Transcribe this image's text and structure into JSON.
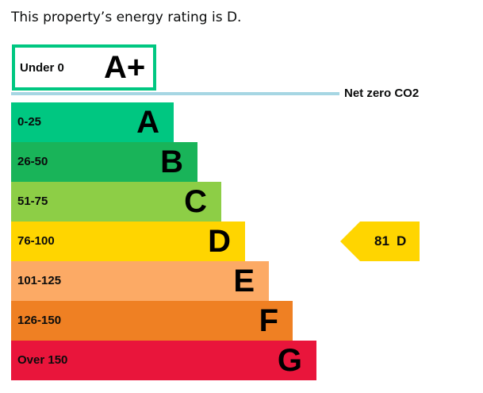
{
  "headline": "This property’s energy rating is D.",
  "aplus": {
    "range": "Under 0",
    "letter": "A+",
    "color": "#00c781"
  },
  "net_zero": {
    "label": "Net zero CO2",
    "color": "#a6d6e3"
  },
  "bands": [
    {
      "range": "0-25",
      "letter": "A",
      "color": "#00c781"
    },
    {
      "range": "26-50",
      "letter": "B",
      "color": "#19b459"
    },
    {
      "range": "51-75",
      "letter": "C",
      "color": "#8dce46"
    },
    {
      "range": "76-100",
      "letter": "D",
      "color": "#ffd500"
    },
    {
      "range": "101-125",
      "letter": "E",
      "color": "#fcaa65"
    },
    {
      "range": "126-150",
      "letter": "F",
      "color": "#ef8023"
    },
    {
      "range": "Over 150",
      "letter": "G",
      "color": "#e9153b"
    }
  ],
  "current_rating": {
    "score": "81",
    "letter": "D",
    "color": "#ffd500"
  }
}
